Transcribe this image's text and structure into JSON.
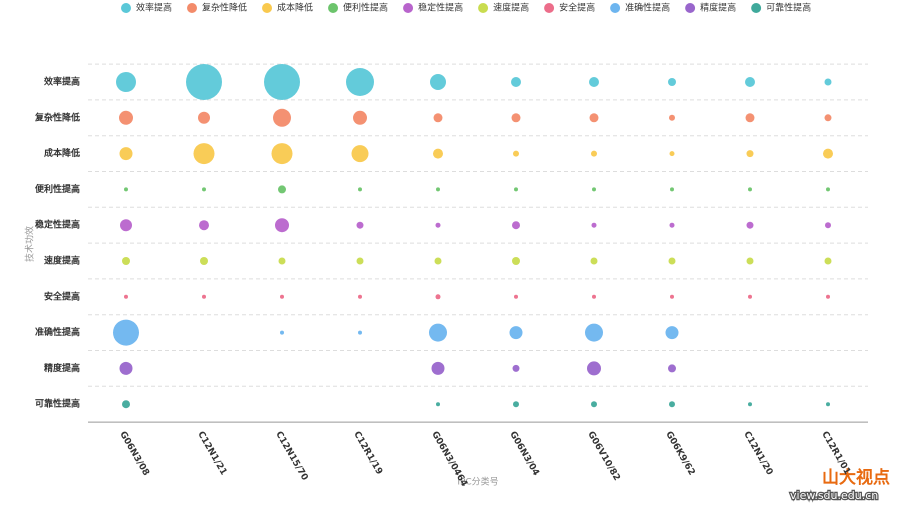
{
  "chart_data": {
    "type": "bubble",
    "x_label": "IPC分类号",
    "y_label": "技术功效",
    "categories": [
      "G06N3/08",
      "C12N1/21",
      "C12N15/70",
      "C12R1/19",
      "G06N3/0464",
      "G06N3/04",
      "G06V10/82",
      "G06K9/62",
      "C12N1/20",
      "C12R1/01"
    ],
    "series": [
      {
        "name": "效率提高",
        "color": "#5bc8d8",
        "values": [
          10,
          18,
          18,
          14,
          8,
          5,
          5,
          4,
          5,
          3.5
        ]
      },
      {
        "name": "复杂性降低",
        "color": "#f38b6a",
        "values": [
          7,
          6,
          9,
          7,
          4.5,
          4.5,
          4.5,
          3,
          4.5,
          3.5
        ]
      },
      {
        "name": "成本降低",
        "color": "#f9c94e",
        "values": [
          6.5,
          10.5,
          10.5,
          8.5,
          5,
          3,
          3,
          2.5,
          3.5,
          5
        ]
      },
      {
        "name": "便利性提高",
        "color": "#6cc46c",
        "values": [
          2,
          2,
          4,
          2,
          2,
          2,
          2,
          2,
          2,
          2
        ]
      },
      {
        "name": "稳定性提高",
        "color": "#b864cc",
        "values": [
          6,
          5,
          7,
          3.5,
          2.5,
          4,
          2.5,
          2.5,
          3.5,
          3
        ]
      },
      {
        "name": "速度提高",
        "color": "#c9dc4f",
        "values": [
          4,
          4,
          3.5,
          3.5,
          3.5,
          4,
          3.5,
          3.5,
          3.5,
          3.5
        ]
      },
      {
        "name": "安全提高",
        "color": "#ec6d8a",
        "values": [
          2,
          2,
          2,
          2,
          2.5,
          2,
          2,
          2,
          2,
          2
        ]
      },
      {
        "name": "准确性提高",
        "color": "#6db5ef",
        "values": [
          13,
          null,
          2,
          2,
          9,
          6.5,
          9,
          6.5,
          null,
          null
        ]
      },
      {
        "name": "精度提高",
        "color": "#9966cc",
        "values": [
          6.5,
          null,
          null,
          null,
          6.5,
          3.5,
          7,
          4,
          null,
          null
        ]
      },
      {
        "name": "可靠性提高",
        "color": "#3fa99b",
        "values": [
          4,
          null,
          null,
          null,
          2,
          3,
          3,
          3,
          2,
          2
        ]
      }
    ]
  },
  "watermark": {
    "name": "山大视点",
    "url": "view.sdu.edu.cn"
  }
}
